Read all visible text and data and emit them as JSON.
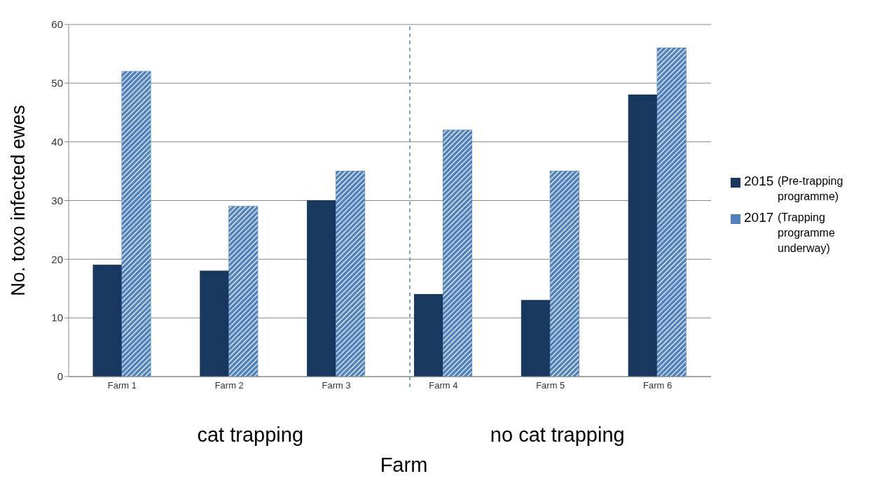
{
  "chart_data": {
    "type": "bar",
    "xlabel": "Farm",
    "ylabel": "No. toxo infected ewes",
    "categories": [
      "Farm 1",
      "Farm 2",
      "Farm 3",
      "Farm 4",
      "Farm 5",
      "Farm 6"
    ],
    "series": [
      {
        "name": "2015",
        "color": "#17375e",
        "values": [
          19,
          18,
          30,
          14,
          13,
          48
        ]
      },
      {
        "name": "2017",
        "color": "#4f81bd",
        "values": [
          52,
          29,
          35,
          42,
          35,
          56
        ]
      }
    ],
    "ylim": [
      0,
      60
    ],
    "yticks": [
      0,
      10,
      20,
      30,
      40,
      50,
      60
    ],
    "grid": "y",
    "legend": "right",
    "annotations": [
      "(Pre-trapping programme)",
      "(Trapping programme underway)",
      "cat trapping",
      "no cat trapping"
    ]
  }
}
